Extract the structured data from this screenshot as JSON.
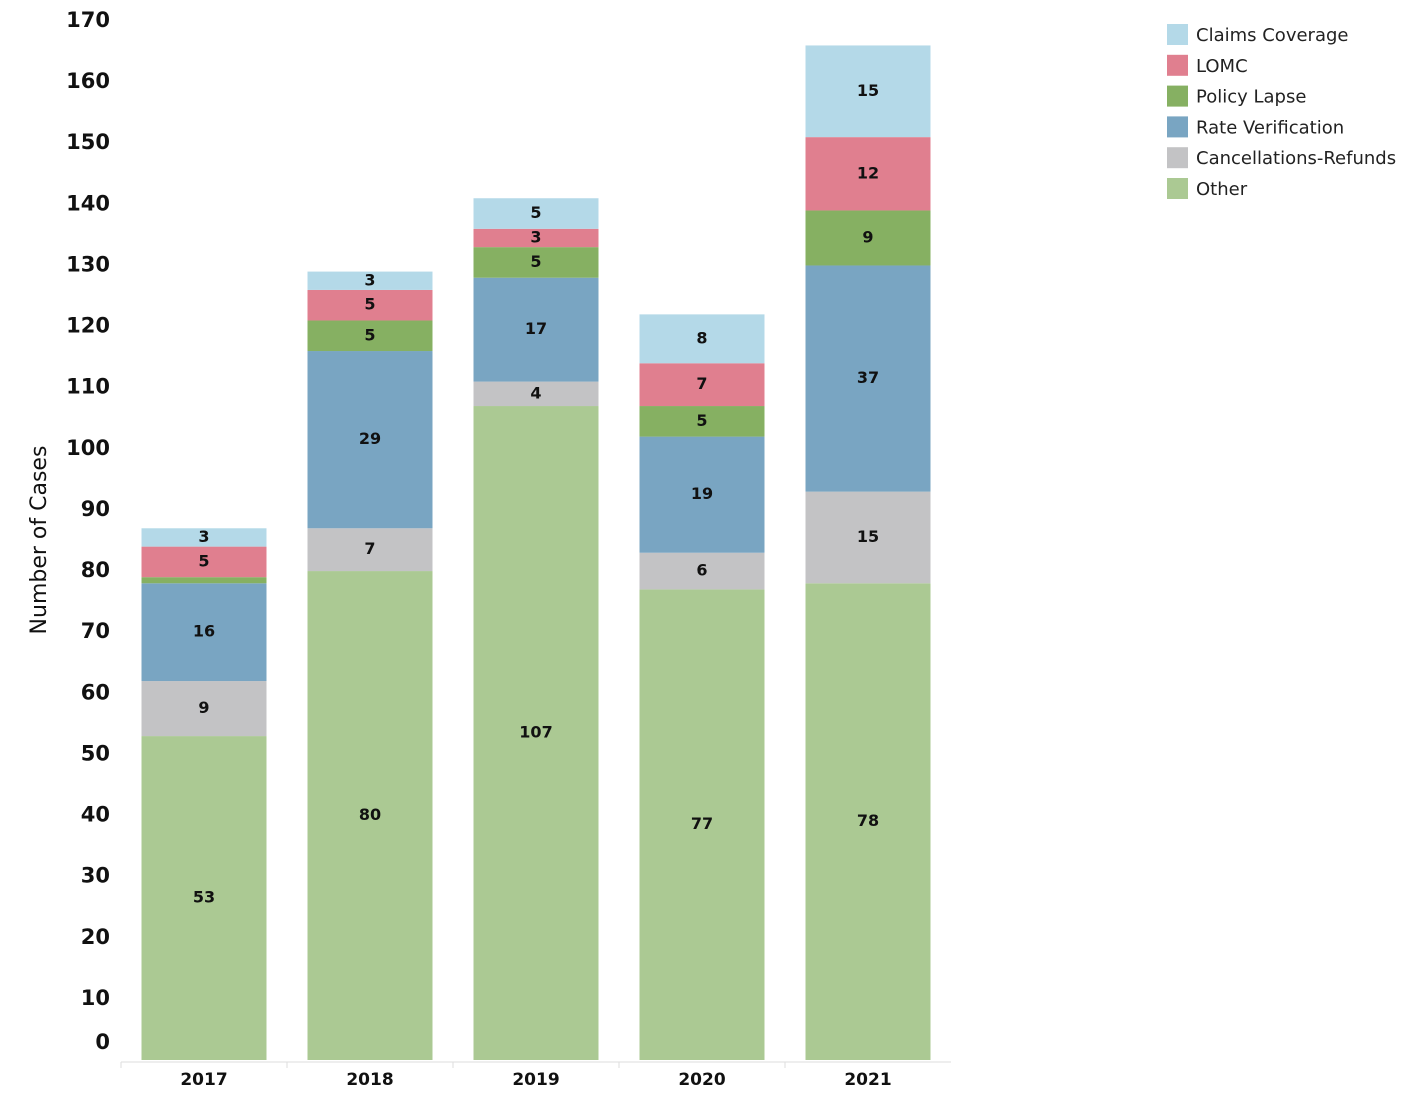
{
  "chart_data": {
    "type": "stacked_bar",
    "y_label": "Number of Cases",
    "categories": [
      "2017",
      "2018",
      "2019",
      "2020",
      "2021"
    ],
    "series": [
      {
        "name": "Other",
        "color": "#abc993",
        "values": [
          53,
          80,
          107,
          77,
          78
        ]
      },
      {
        "name": "Cancellations-Refunds",
        "color": "#c3c3c5",
        "values": [
          9,
          7,
          4,
          6,
          15
        ]
      },
      {
        "name": "Rate Verification",
        "color": "#79a5c2",
        "values": [
          16,
          29,
          17,
          19,
          37
        ]
      },
      {
        "name": "Policy Lapse",
        "color": "#86b062",
        "values": [
          1,
          5,
          5,
          5,
          9
        ],
        "value_labels": [
          null,
          "5",
          "5",
          "5",
          "9"
        ]
      },
      {
        "name": "LOMC",
        "color": "#e07f8f",
        "values": [
          5,
          5,
          3,
          7,
          12
        ]
      },
      {
        "name": "Claims Coverage",
        "color": "#b4d9e8",
        "values": [
          3,
          3,
          5,
          8,
          15
        ]
      }
    ],
    "ylim": [
      0,
      170
    ],
    "yticks": [
      0,
      10,
      20,
      30,
      40,
      50,
      60,
      70,
      80,
      90,
      100,
      110,
      120,
      130,
      140,
      150,
      160,
      170
    ],
    "grid": false,
    "legend": "top-right"
  }
}
